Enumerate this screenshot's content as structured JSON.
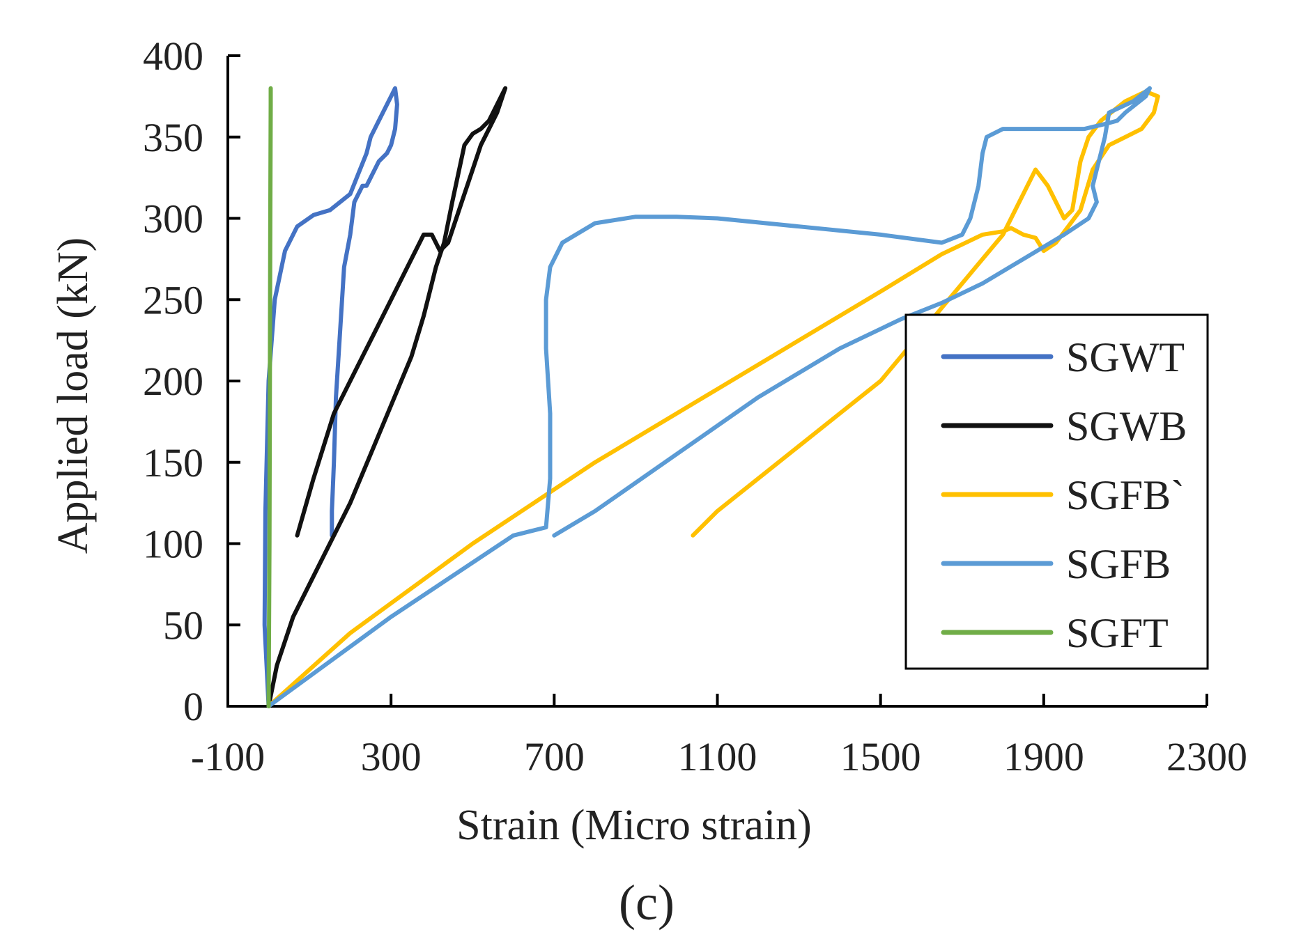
{
  "chart_data": {
    "type": "line",
    "title": "",
    "xlabel": "Strain (Micro strain)",
    "ylabel": "Applied load (kN)",
    "xlim": [
      -100,
      2300
    ],
    "ylim": [
      0,
      400
    ],
    "x_ticks": [
      -100,
      300,
      700,
      1100,
      1500,
      1900,
      2300
    ],
    "y_ticks": [
      0,
      50,
      100,
      150,
      200,
      250,
      300,
      350,
      400
    ],
    "legend_position": "right",
    "series": [
      {
        "name": "SGWT",
        "color": "#4472C4",
        "x": [
          0,
          -10,
          -8,
          0,
          15,
          40,
          70,
          110,
          150,
          200,
          240,
          250,
          270,
          300,
          310,
          315,
          310,
          300,
          290,
          270,
          250,
          240,
          230,
          210,
          200,
          185,
          175,
          165,
          160,
          155,
          155
        ],
        "y": [
          0,
          50,
          120,
          200,
          250,
          280,
          295,
          302,
          305,
          315,
          340,
          350,
          360,
          375,
          380,
          370,
          355,
          345,
          340,
          335,
          325,
          320,
          320,
          310,
          290,
          270,
          230,
          190,
          150,
          120,
          105
        ]
      },
      {
        "name": "SGWB",
        "color": "#111111",
        "x": [
          0,
          20,
          60,
          120,
          160,
          200,
          250,
          300,
          350,
          380,
          390,
          410,
          430,
          450,
          480,
          500,
          520,
          540,
          560,
          570,
          580,
          560,
          540,
          520,
          500,
          480,
          460,
          440,
          420,
          400,
          380,
          340,
          300,
          260,
          220,
          160,
          110,
          70
        ],
        "y": [
          0,
          25,
          55,
          85,
          105,
          125,
          155,
          185,
          215,
          240,
          250,
          270,
          285,
          310,
          345,
          352,
          355,
          360,
          370,
          375,
          380,
          365,
          355,
          345,
          330,
          315,
          300,
          285,
          280,
          290,
          290,
          270,
          250,
          230,
          210,
          180,
          140,
          105
        ]
      },
      {
        "name": "SGFB`",
        "color": "#FFC000",
        "x": [
          0,
          200,
          500,
          800,
          1100,
          1300,
          1500,
          1650,
          1750,
          1800,
          1820,
          1850,
          1880,
          1900,
          1930,
          1960,
          1990,
          2020,
          2060,
          2100,
          2140,
          2170,
          2180,
          2150,
          2100,
          2040,
          2010,
          1990,
          1980,
          1970,
          1950,
          1930,
          1910,
          1880,
          1840,
          1800,
          1750,
          1700,
          1650,
          1600,
          1500,
          1400,
          1300,
          1200,
          1100,
          1040
        ],
        "y": [
          0,
          45,
          100,
          150,
          195,
          225,
          255,
          278,
          290,
          292,
          294,
          290,
          288,
          280,
          285,
          295,
          305,
          330,
          345,
          350,
          355,
          365,
          375,
          378,
          372,
          360,
          350,
          335,
          320,
          305,
          300,
          310,
          320,
          330,
          310,
          290,
          275,
          260,
          245,
          230,
          200,
          180,
          160,
          140,
          120,
          105
        ]
      },
      {
        "name": "SGFB",
        "color": "#5B9BD5",
        "x": [
          0,
          300,
          600,
          680,
          690,
          690,
          680,
          680,
          690,
          720,
          800,
          900,
          1000,
          1100,
          1300,
          1500,
          1650,
          1700,
          1720,
          1740,
          1750,
          1760,
          1800,
          1900,
          2000,
          2050,
          2080,
          2100,
          2150,
          2160,
          2120,
          2060,
          2050,
          2040,
          2030,
          2020,
          2030,
          2010,
          1950,
          1850,
          1750,
          1650,
          1550,
          1400,
          1200,
          1000,
          800,
          700
        ],
        "y": [
          0,
          55,
          105,
          110,
          140,
          180,
          220,
          250,
          270,
          285,
          297,
          301,
          301,
          300,
          295,
          290,
          285,
          290,
          300,
          320,
          340,
          350,
          355,
          355,
          355,
          358,
          360,
          365,
          375,
          380,
          372,
          365,
          350,
          340,
          330,
          320,
          310,
          300,
          290,
          275,
          260,
          248,
          238,
          220,
          190,
          155,
          120,
          105
        ]
      },
      {
        "name": "SGFT",
        "color": "#70AD47",
        "x": [
          0,
          1,
          2,
          3,
          4,
          5,
          5
        ],
        "y": [
          0,
          50,
          100,
          200,
          300,
          370,
          380
        ]
      }
    ],
    "sublabel": "(c)"
  }
}
